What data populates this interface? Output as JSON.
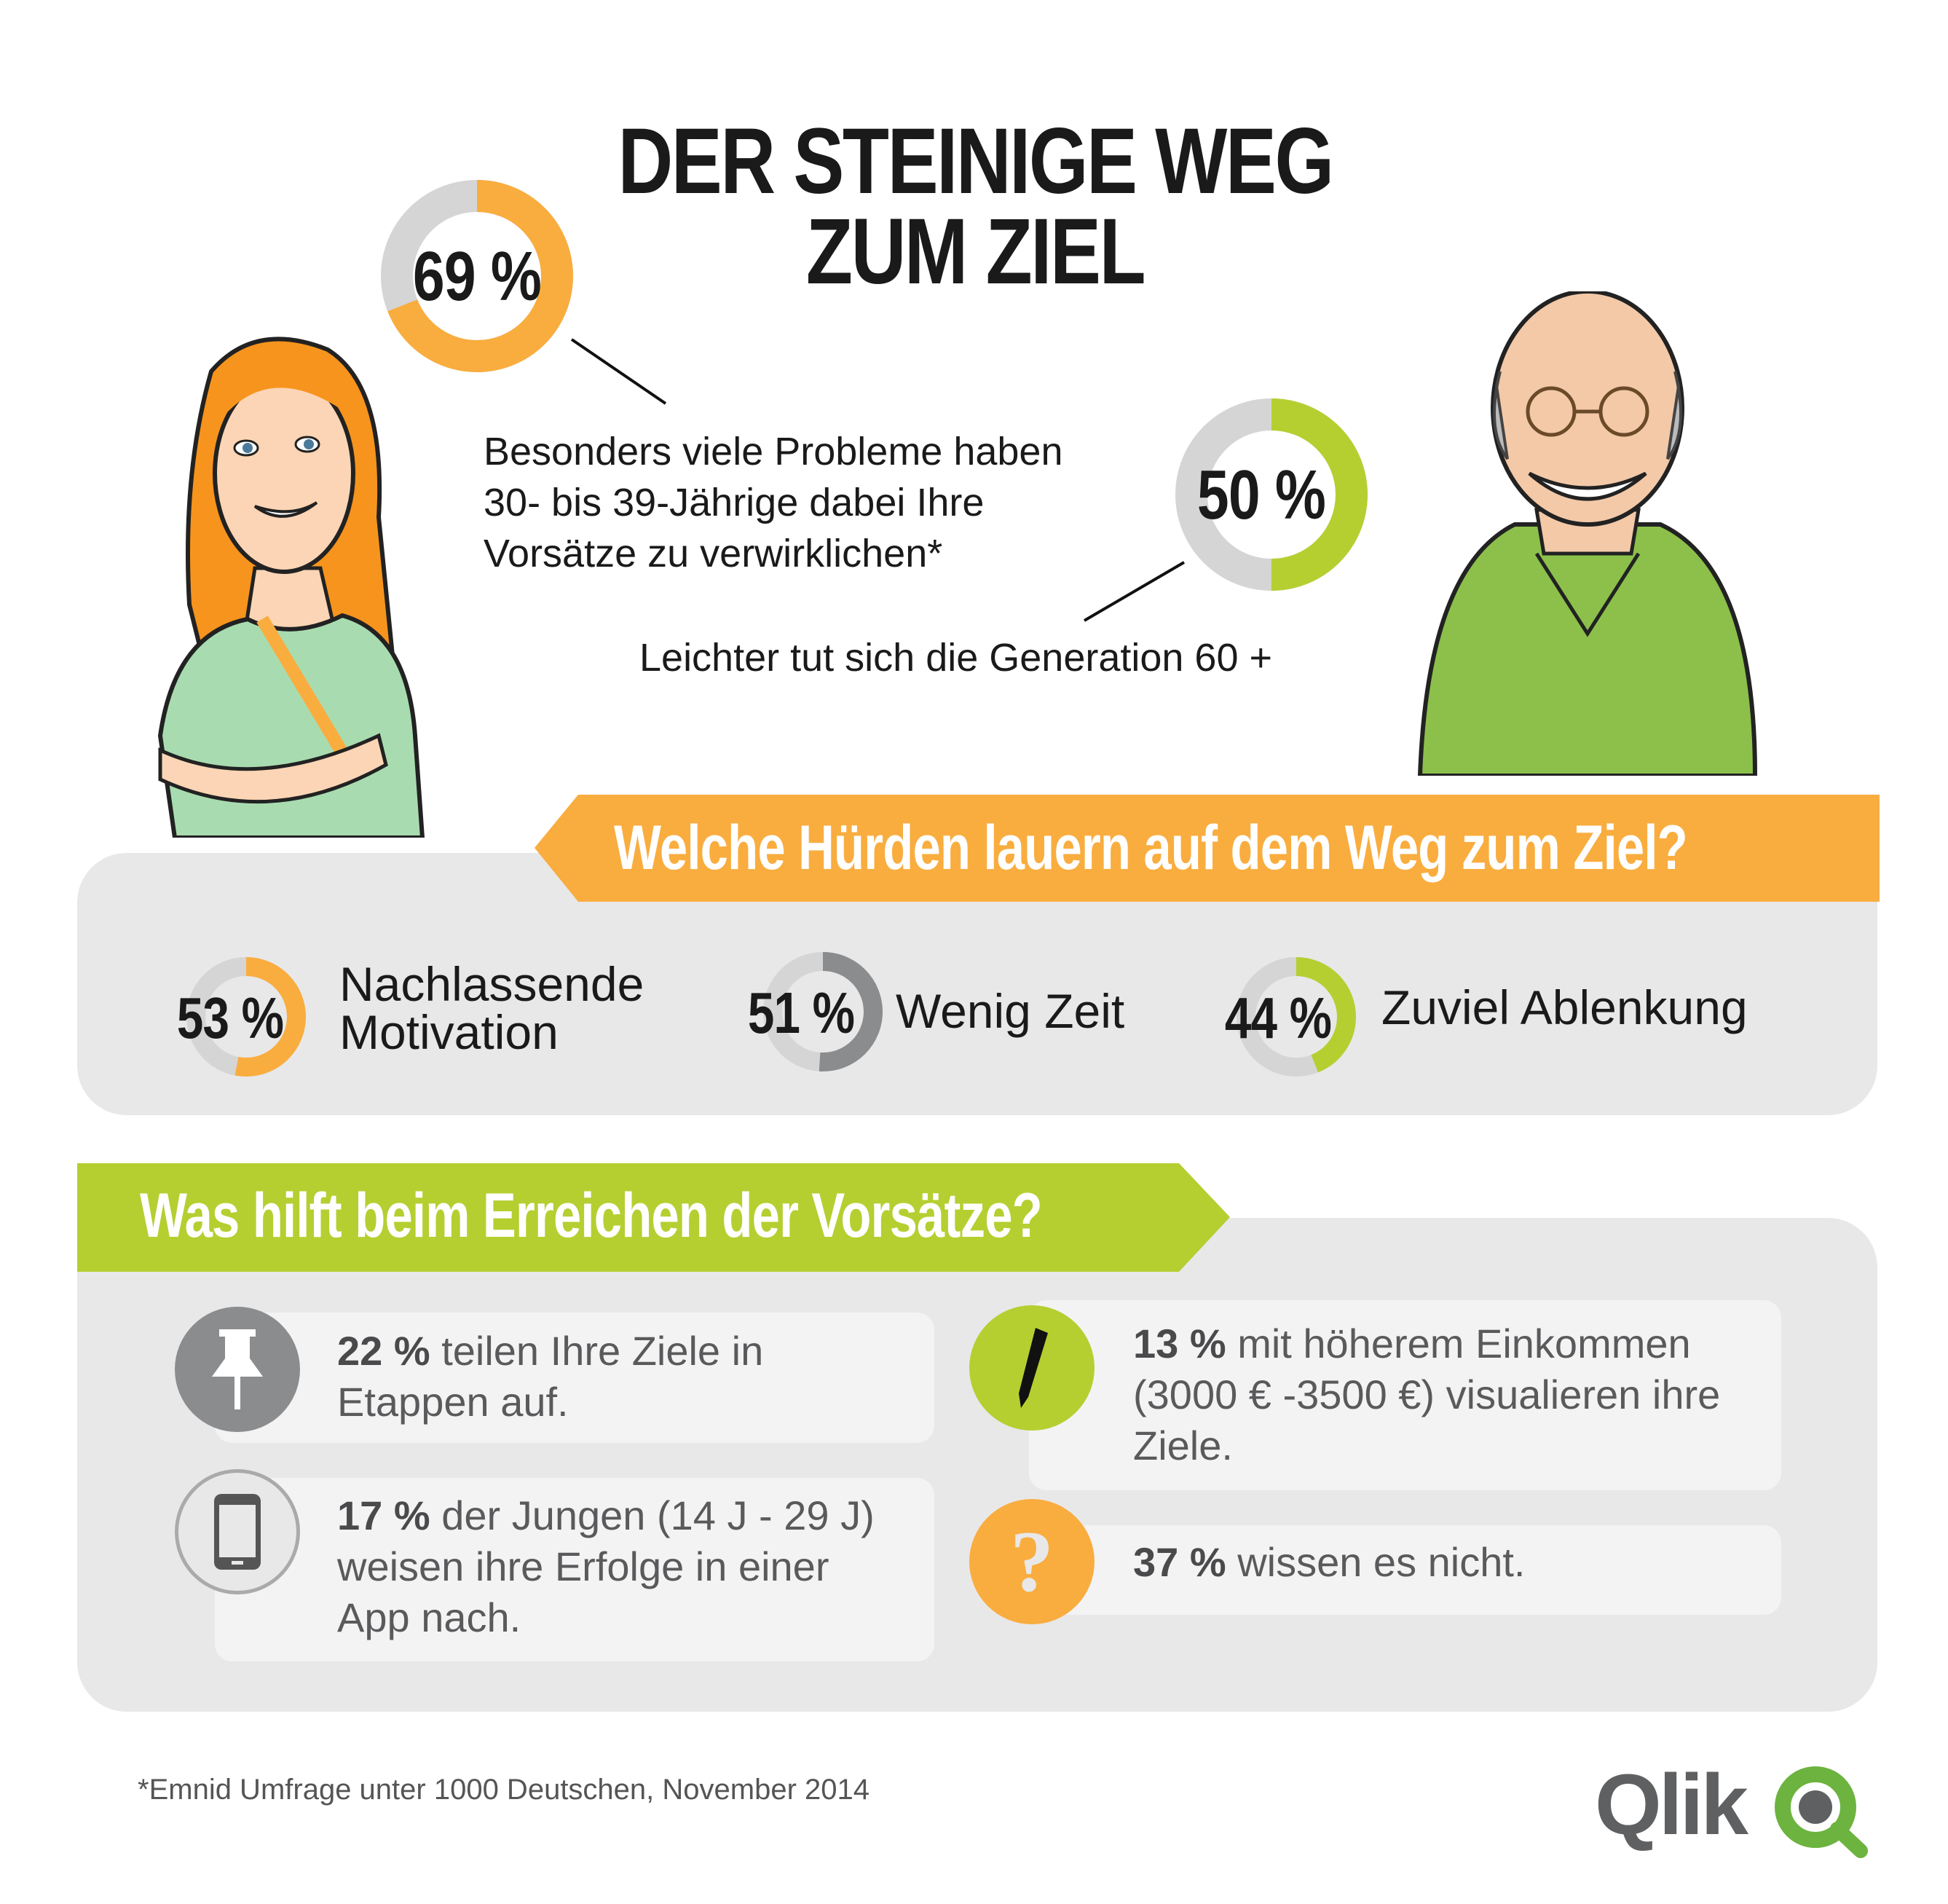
{
  "title": {
    "line1": "DER STEINIGE WEG",
    "line2": "ZUM ZIEL"
  },
  "colors": {
    "orange": "#f9ad3f",
    "green": "#b5cf31",
    "gray_track": "#d5d5d6",
    "dark_gray": "#8b8c8e",
    "panel": "#e8e8e9",
    "text_gray": "#5a5a5c",
    "qlik_green": "#6cb33f"
  },
  "stat_30_39": {
    "value": 69,
    "label": "69 %",
    "text": [
      "Besonders viele Probleme haben",
      "30- bis 39-Jährige dabei Ihre",
      "Vorsätze zu verwirklichen*"
    ]
  },
  "stat_60plus": {
    "value": 50,
    "label": "50 %",
    "text": "Leichter tut sich die Generation 60 +"
  },
  "hurdles": {
    "heading": "Welche Hürden lauern auf dem Weg zum Ziel?",
    "items": [
      {
        "value": 53,
        "label": "53 %",
        "text_line1": "Nachlassende",
        "text_line2": "Motivation",
        "color": "#f9ad3f"
      },
      {
        "value": 51,
        "label": "51 %",
        "text_line1": "Wenig Zeit",
        "color": "#8b8c8e"
      },
      {
        "value": 44,
        "label": "44 %",
        "text_line1": "Zuviel Ablenkung",
        "color": "#b5cf31"
      }
    ]
  },
  "helps": {
    "heading": "Was hilft beim Erreichen der Vorsätze?",
    "items": [
      {
        "icon": "pushpin-icon",
        "percent": "22 %",
        "text_first": " teilen Ihre Ziele in",
        "text_rest": [
          "Etappen auf."
        ]
      },
      {
        "icon": "smartphone-icon",
        "percent": "17 %",
        "text_first": " der Jungen (14 J - 29 J)",
        "text_rest": [
          "weisen ihre Erfolge in einer",
          "App nach."
        ]
      },
      {
        "icon": "pencil-icon",
        "percent": "13 %",
        "text_first": " mit höherem Einkommen",
        "text_rest": [
          "(3000 € -3500 €) visualieren ihre",
          "Ziele."
        ]
      },
      {
        "icon": "question-icon",
        "percent": "37 %",
        "text_first": " wissen es nicht.",
        "text_rest": []
      }
    ]
  },
  "footnote": "*Emnid Umfrage unter 1000 Deutschen, November 2014",
  "logo": {
    "text": "Qlik"
  }
}
